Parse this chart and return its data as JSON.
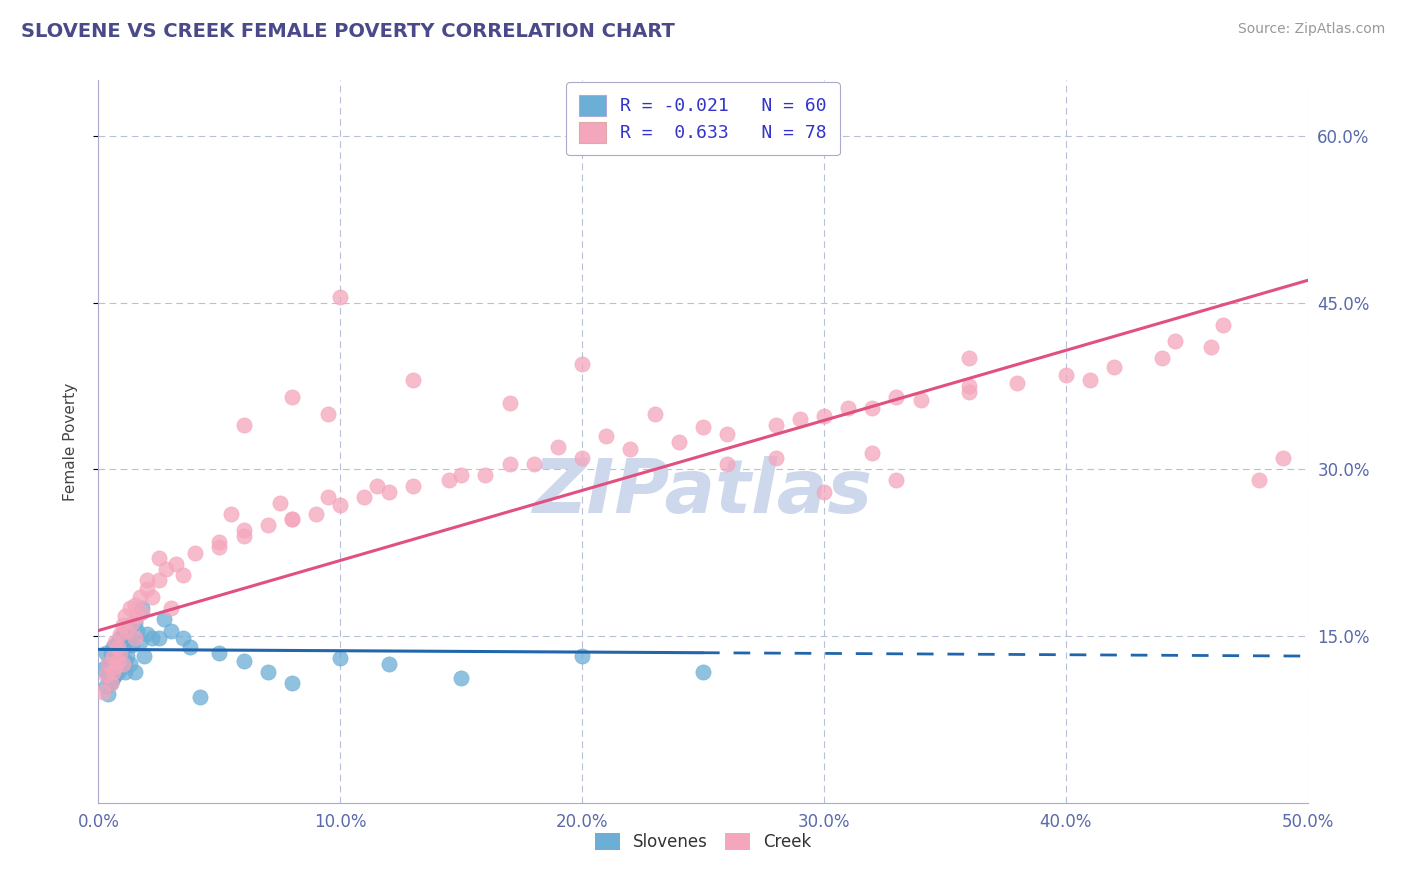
{
  "title": "SLOVENE VS CREEK FEMALE POVERTY CORRELATION CHART",
  "source_text": "Source: ZipAtlas.com",
  "ylabel": "Female Poverty",
  "xlim": [
    0.0,
    0.5
  ],
  "ylim": [
    0.0,
    0.65
  ],
  "xticks": [
    0.0,
    0.1,
    0.2,
    0.3,
    0.4,
    0.5
  ],
  "xticklabels": [
    "0.0%",
    "10.0%",
    "20.0%",
    "30.0%",
    "40.0%",
    "50.0%"
  ],
  "ytick_positions": [
    0.15,
    0.3,
    0.45,
    0.6
  ],
  "yticklabels": [
    "15.0%",
    "30.0%",
    "45.0%",
    "60.0%"
  ],
  "slovene_R": -0.021,
  "slovene_N": 60,
  "creek_R": 0.633,
  "creek_N": 78,
  "slovene_color": "#6baed6",
  "creek_color": "#f4a6bc",
  "slovene_line_color": "#2166ac",
  "creek_line_color": "#e05080",
  "title_color": "#4a4a8a",
  "source_color": "#999999",
  "tick_label_color": "#5a6aaa",
  "background_color": "#ffffff",
  "watermark_text": "ZIPatlas",
  "watermark_color": "#cdd8ec",
  "legend_color": "#3333cc",
  "slovene_x": [
    0.002,
    0.003,
    0.003,
    0.004,
    0.004,
    0.004,
    0.005,
    0.005,
    0.005,
    0.005,
    0.006,
    0.006,
    0.006,
    0.006,
    0.007,
    0.007,
    0.007,
    0.007,
    0.007,
    0.008,
    0.008,
    0.008,
    0.008,
    0.009,
    0.009,
    0.009,
    0.01,
    0.01,
    0.01,
    0.011,
    0.011,
    0.011,
    0.012,
    0.012,
    0.013,
    0.013,
    0.014,
    0.015,
    0.015,
    0.016,
    0.017,
    0.018,
    0.019,
    0.02,
    0.022,
    0.025,
    0.027,
    0.03,
    0.035,
    0.038,
    0.042,
    0.05,
    0.06,
    0.07,
    0.08,
    0.1,
    0.12,
    0.15,
    0.2,
    0.25
  ],
  "slovene_y": [
    0.12,
    0.105,
    0.135,
    0.098,
    0.125,
    0.115,
    0.11,
    0.128,
    0.108,
    0.135,
    0.118,
    0.125,
    0.14,
    0.112,
    0.13,
    0.122,
    0.138,
    0.115,
    0.142,
    0.125,
    0.132,
    0.118,
    0.145,
    0.128,
    0.135,
    0.148,
    0.122,
    0.138,
    0.152,
    0.128,
    0.142,
    0.118,
    0.155,
    0.132,
    0.148,
    0.125,
    0.142,
    0.162,
    0.118,
    0.155,
    0.145,
    0.175,
    0.132,
    0.152,
    0.148,
    0.148,
    0.165,
    0.155,
    0.148,
    0.14,
    0.095,
    0.135,
    0.128,
    0.118,
    0.108,
    0.13,
    0.125,
    0.112,
    0.132,
    0.118
  ],
  "creek_x": [
    0.002,
    0.003,
    0.004,
    0.005,
    0.006,
    0.006,
    0.007,
    0.007,
    0.008,
    0.008,
    0.009,
    0.009,
    0.01,
    0.01,
    0.011,
    0.012,
    0.013,
    0.014,
    0.015,
    0.016,
    0.017,
    0.018,
    0.02,
    0.022,
    0.025,
    0.028,
    0.032,
    0.04,
    0.05,
    0.06,
    0.07,
    0.08,
    0.09,
    0.1,
    0.11,
    0.12,
    0.13,
    0.145,
    0.16,
    0.18,
    0.2,
    0.22,
    0.24,
    0.26,
    0.28,
    0.3,
    0.32,
    0.34,
    0.36,
    0.38,
    0.4,
    0.42,
    0.44,
    0.46,
    0.055,
    0.075,
    0.095,
    0.115,
    0.15,
    0.17,
    0.19,
    0.21,
    0.25,
    0.29,
    0.31,
    0.33,
    0.36,
    0.41,
    0.445,
    0.465,
    0.015,
    0.02,
    0.025,
    0.03,
    0.035,
    0.05,
    0.06,
    0.08
  ],
  "creek_y": [
    0.1,
    0.115,
    0.125,
    0.108,
    0.118,
    0.132,
    0.122,
    0.145,
    0.128,
    0.14,
    0.152,
    0.135,
    0.16,
    0.125,
    0.168,
    0.155,
    0.175,
    0.162,
    0.178,
    0.168,
    0.185,
    0.172,
    0.192,
    0.185,
    0.2,
    0.21,
    0.215,
    0.225,
    0.23,
    0.24,
    0.25,
    0.255,
    0.26,
    0.268,
    0.275,
    0.28,
    0.285,
    0.29,
    0.295,
    0.305,
    0.31,
    0.318,
    0.325,
    0.332,
    0.34,
    0.348,
    0.355,
    0.362,
    0.37,
    0.378,
    0.385,
    0.392,
    0.4,
    0.41,
    0.26,
    0.27,
    0.275,
    0.285,
    0.295,
    0.305,
    0.32,
    0.33,
    0.338,
    0.345,
    0.355,
    0.365,
    0.375,
    0.38,
    0.415,
    0.43,
    0.148,
    0.2,
    0.22,
    0.175,
    0.205,
    0.235,
    0.245,
    0.255
  ],
  "creek_scatter_x": [
    0.1,
    0.13,
    0.17,
    0.2,
    0.23,
    0.26,
    0.3,
    0.33,
    0.36,
    0.06,
    0.08,
    0.095,
    0.28,
    0.32,
    0.48,
    0.49
  ],
  "creek_scatter_y": [
    0.455,
    0.38,
    0.36,
    0.395,
    0.35,
    0.305,
    0.28,
    0.29,
    0.4,
    0.34,
    0.365,
    0.35,
    0.31,
    0.315,
    0.29,
    0.31
  ],
  "blue_line_solid_end": 0.25,
  "blue_line_start_y": 0.138,
  "blue_line_end_y": 0.132,
  "pink_line_start_y": 0.155,
  "pink_line_end_y": 0.47
}
